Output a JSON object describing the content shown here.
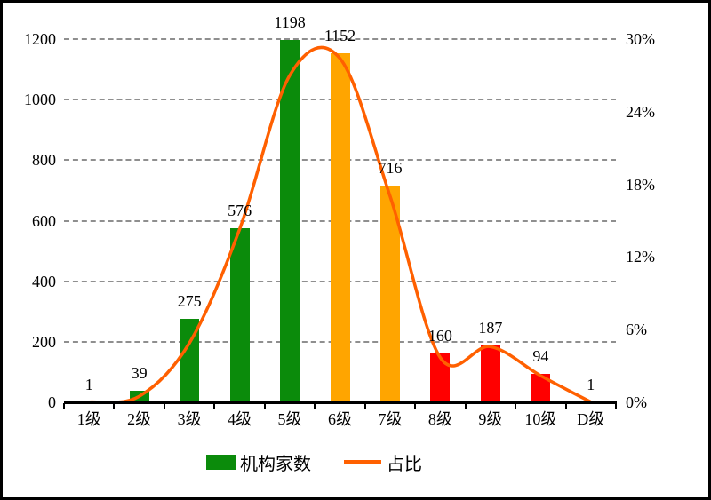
{
  "chart_data": {
    "type": "combo-bar-line",
    "categories": [
      "1级",
      "2级",
      "3级",
      "4级",
      "5级",
      "6级",
      "7级",
      "8级",
      "9级",
      "10级",
      "D级"
    ],
    "series": [
      {
        "name": "机构家数",
        "type": "bar",
        "axis": "left",
        "values": [
          1,
          39,
          275,
          576,
          1198,
          1152,
          716,
          160,
          187,
          94,
          1
        ],
        "value_labels": [
          "1",
          "39",
          "275",
          "576",
          "1198",
          "1152",
          "716",
          "160",
          "187",
          "94",
          "1"
        ],
        "bar_colors": [
          "#0b8b0b",
          "#0b8b0b",
          "#0b8b0b",
          "#0b8b0b",
          "#0b8b0b",
          "#ffa500",
          "#ffa500",
          "#ff0000",
          "#ff0000",
          "#ff0000",
          "#ff0000"
        ]
      },
      {
        "name": "占比",
        "type": "line",
        "axis": "right",
        "color": "#ff6000",
        "values_percent_estimated": [
          0.02,
          0.5,
          4.9,
          14.3,
          27.0,
          28.4,
          17.0,
          3.7,
          4.6,
          2.2,
          0.02
        ]
      }
    ],
    "left_axis": {
      "min": 0,
      "max": 1200,
      "tick_interval": 200,
      "tick_labels": [
        "0",
        "200",
        "400",
        "600",
        "800",
        "1000",
        "1200"
      ]
    },
    "right_axis": {
      "min": 0,
      "max": 30,
      "tick_interval": 6,
      "tick_labels": [
        "0%",
        "6%",
        "12%",
        "18%",
        "24%",
        "30%"
      ]
    },
    "legend": [
      {
        "label": "机构家数",
        "swatch": "bar-rect",
        "color": "#0b8b0b"
      },
      {
        "label": "占比",
        "swatch": "line",
        "color": "#ff6000"
      }
    ],
    "style": {
      "gridline_color": "#8f8f8f",
      "axis_color": "#000000",
      "background": "#ffffff",
      "grid": "dashed horizontal at left-axis ticks",
      "legend_position": "bottom-center"
    }
  }
}
